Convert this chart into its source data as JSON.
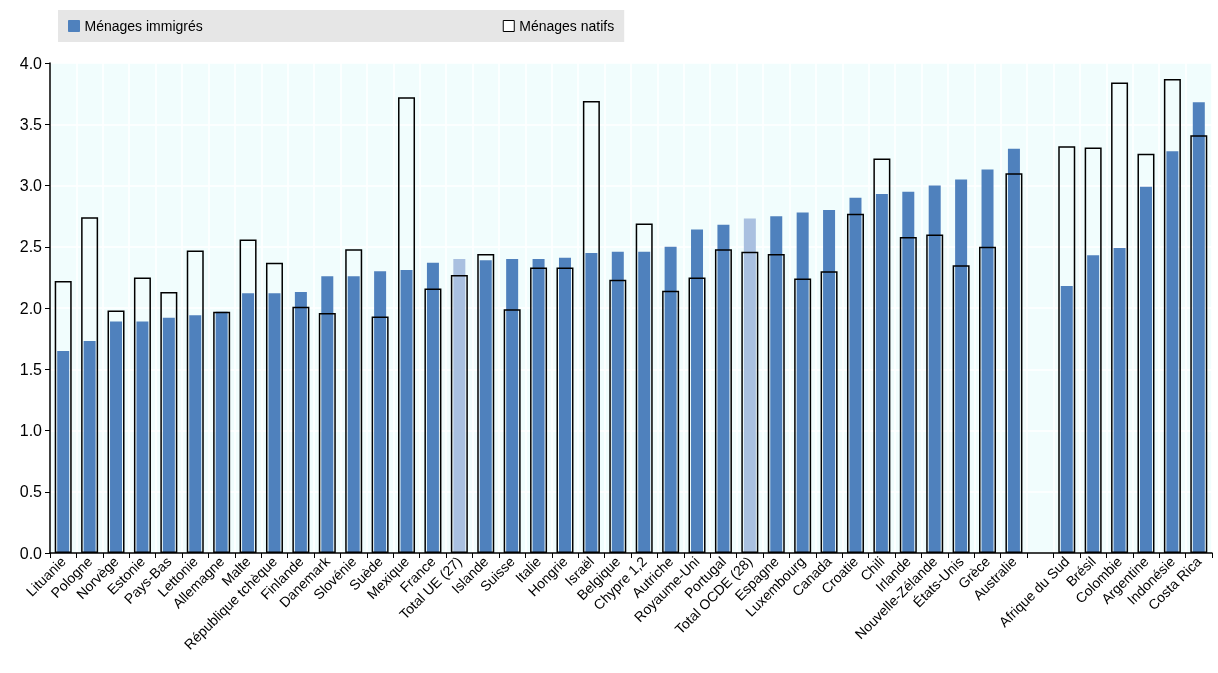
{
  "chart_data": {
    "type": "bar",
    "categories": [
      "Lituanie",
      "Pologne",
      "Norvège",
      "Estonie",
      "Pays-Bas",
      "Lettonie",
      "Allemagne",
      "Malte",
      "République tchèque",
      "Finlande",
      "Danemark",
      "Slovénie",
      "Suède",
      "Mexique",
      "France",
      "Total UE (27)",
      "Islande",
      "Suisse",
      "Italie",
      "Hongrie",
      "Israël",
      "Belgique",
      "Chypre 1,2",
      "Autriche",
      "Royaume-Uni",
      "Portugal",
      "Total OCDE (28)",
      "Espagne",
      "Luxembourg",
      "Canada",
      "Croatie",
      "Chili",
      "Irlande",
      "Nouvelle-Zélande",
      "États-Unis",
      "Grèce",
      "Australie",
      null,
      "Afrique du Sud",
      "Brésil",
      "Colombie",
      "Argentine",
      "Indonésie",
      "Costa Rica"
    ],
    "series": [
      {
        "name": "Ménages immigrés",
        "color": "#4f81bd",
        "colors": [
          "#4f81bd",
          "#4f81bd",
          "#4f81bd",
          "#4f81bd",
          "#4f81bd",
          "#4f81bd",
          "#4f81bd",
          "#4f81bd",
          "#4f81bd",
          "#4f81bd",
          "#4f81bd",
          "#4f81bd",
          "#4f81bd",
          "#4f81bd",
          "#4f81bd",
          "#a9c0e0",
          "#4f81bd",
          "#4f81bd",
          "#4f81bd",
          "#4f81bd",
          "#4f81bd",
          "#4f81bd",
          "#4f81bd",
          "#4f81bd",
          "#4f81bd",
          "#4f81bd",
          "#a9c0e0",
          "#4f81bd",
          "#4f81bd",
          "#4f81bd",
          "#4f81bd",
          "#4f81bd",
          "#4f81bd",
          "#4f81bd",
          "#4f81bd",
          "#4f81bd",
          "#4f81bd",
          "#4f81bd",
          "#4f81bd",
          "#4f81bd",
          "#4f81bd",
          "#4f81bd",
          "#4f81bd",
          "#4f81bd"
        ],
        "values": [
          1.65,
          1.73,
          1.89,
          1.89,
          1.92,
          1.94,
          1.97,
          2.12,
          2.12,
          2.13,
          2.26,
          2.26,
          2.3,
          2.31,
          2.37,
          2.4,
          2.39,
          2.4,
          2.4,
          2.41,
          2.45,
          2.46,
          2.46,
          2.5,
          2.64,
          2.68,
          2.73,
          2.75,
          2.78,
          2.8,
          2.9,
          2.93,
          2.95,
          3.0,
          3.05,
          3.13,
          3.3,
          null,
          2.18,
          2.43,
          2.49,
          2.99,
          3.28,
          3.68
        ]
      },
      {
        "name": "Ménages natifs",
        "color": "#ffffff",
        "values": [
          2.22,
          2.74,
          1.98,
          2.25,
          2.13,
          2.47,
          1.97,
          2.56,
          2.37,
          2.01,
          1.96,
          2.48,
          1.93,
          3.72,
          2.16,
          2.27,
          2.44,
          1.99,
          2.33,
          2.33,
          3.69,
          2.23,
          2.69,
          2.14,
          2.25,
          2.48,
          2.46,
          2.44,
          2.24,
          2.3,
          2.77,
          3.22,
          2.58,
          2.6,
          2.35,
          2.5,
          3.1,
          null,
          3.32,
          3.31,
          3.84,
          3.26,
          3.87,
          3.41
        ]
      }
    ],
    "ylim": [
      0,
      4
    ],
    "yticks": [
      {
        "value": 0,
        "label": "0.0"
      },
      0.5,
      {
        "value": 1,
        "label": "1.0"
      },
      1.5,
      {
        "value": 2,
        "label": "2.0"
      },
      2.5,
      {
        "value": 3,
        "label": "3.0"
      },
      3.5,
      {
        "value": 4,
        "label": "4.0"
      }
    ],
    "grid": true,
    "legend": "top"
  }
}
